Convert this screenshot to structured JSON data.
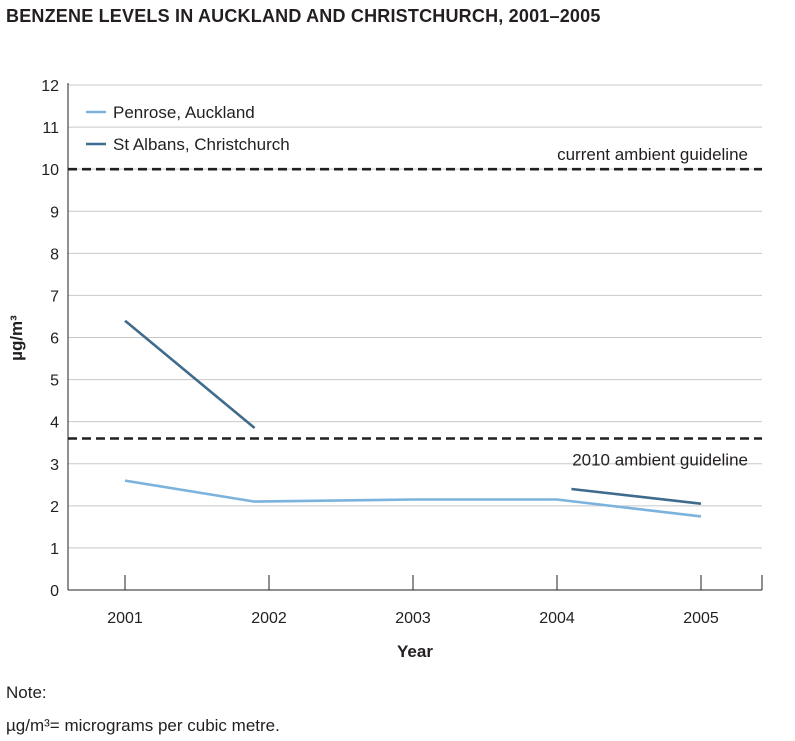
{
  "title": "BENZENE LEVELS IN AUCKLAND AND CHRISTCHURCH, 2001–2005",
  "note": {
    "label": "Note:",
    "text": "µg/m³= micrograms per cubic metre."
  },
  "colors": {
    "penrose": "#7bb3dc",
    "st_albans": "#3f6b8c",
    "grid": "#c8c8c8",
    "axis": "#231f20",
    "guideline": "#231f20"
  },
  "chart_data": {
    "type": "line",
    "title": "BENZENE LEVELS IN AUCKLAND AND CHRISTCHURCH, 2001–2005",
    "xlabel": "Year",
    "ylabel": "µg/m³",
    "categories": [
      "2001",
      "2002",
      "2003",
      "2004",
      "2005"
    ],
    "ylim": [
      0,
      12
    ],
    "yticks": [
      "0",
      "1",
      "2",
      "3",
      "4",
      "5",
      "6",
      "7",
      "8",
      "9",
      "10",
      "11",
      "12"
    ],
    "grid": true,
    "legend_position": "top-left",
    "series": [
      {
        "name": "Penrose, Auckland",
        "color": "#7bb3dc",
        "segments": [
          [
            {
              "x": 2001.0,
              "y": 2.6
            },
            {
              "x": 2001.9,
              "y": 2.1
            },
            {
              "x": 2003.0,
              "y": 2.15
            },
            {
              "x": 2004.0,
              "y": 2.15
            },
            {
              "x": 2005.0,
              "y": 1.75
            }
          ]
        ]
      },
      {
        "name": "St Albans, Christchurch",
        "color": "#3f6b8c",
        "segments": [
          [
            {
              "x": 2001.0,
              "y": 6.4
            },
            {
              "x": 2001.9,
              "y": 3.85
            }
          ],
          [
            {
              "x": 2004.1,
              "y": 2.4
            },
            {
              "x": 2005.0,
              "y": 2.05
            }
          ]
        ]
      }
    ],
    "guidelines": [
      {
        "label": "current ambient guideline",
        "value": 10
      },
      {
        "label": "2010 ambient guideline",
        "value": 3.6
      }
    ]
  }
}
